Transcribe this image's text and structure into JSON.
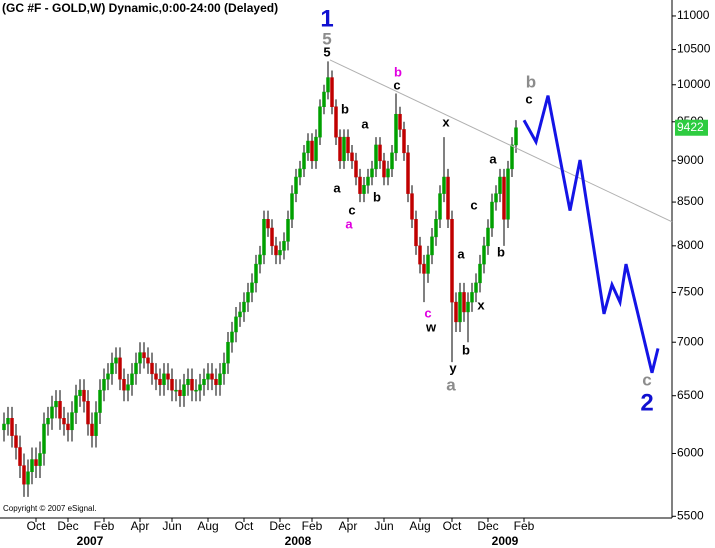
{
  "chart_data": {
    "type": "candlestick",
    "title": "(GC #F - GOLD,W) Dynamic,0:00-24:00 (Delayed)",
    "copyright": "Copyright © 2007 eSignal.",
    "log_scale": true,
    "up_color": "#00a000",
    "down_color": "#c00000",
    "last_price_color": "#2ecc40",
    "xlim": [
      -1,
      167
    ],
    "ylim": [
      5487,
      11246
    ],
    "yticks": [
      5500,
      6000,
      6500,
      7000,
      7500,
      8000,
      8500,
      9000,
      9500,
      10000,
      10500,
      11000
    ],
    "xticks": [
      {
        "value": 8,
        "label": "Oct"
      },
      {
        "value": 16,
        "label": "Dec"
      },
      {
        "value": 25,
        "label": "Feb"
      },
      {
        "value": 34,
        "label": "Apr"
      },
      {
        "value": 42,
        "label": "Jun"
      },
      {
        "value": 51,
        "label": "Aug"
      },
      {
        "value": 60,
        "label": "Oct"
      },
      {
        "value": 69,
        "label": "Dec"
      },
      {
        "value": 77,
        "label": "Feb"
      },
      {
        "value": 86,
        "label": "Apr"
      },
      {
        "value": 95,
        "label": "Jun"
      },
      {
        "value": 104,
        "label": "Aug"
      },
      {
        "value": 112,
        "label": "Oct"
      },
      {
        "value": 121,
        "label": "Dec"
      },
      {
        "value": 130,
        "label": "Feb"
      }
    ],
    "year_ticks": [
      {
        "value": 21.5,
        "label": "2007"
      },
      {
        "value": 73.5,
        "label": "2008"
      },
      {
        "value": 125.25,
        "label": "2009"
      }
    ],
    "open": [
      6200,
      6250,
      6300,
      6150,
      6050,
      5900,
      5750,
      5850,
      5950,
      5900,
      6000,
      6250,
      6300,
      6400,
      6450,
      6300,
      6250,
      6200,
      6350,
      6500,
      6550,
      6450,
      6250,
      6150,
      6350,
      6550,
      6650,
      6700,
      6800,
      6850,
      6650,
      6550,
      6600,
      6700,
      6800,
      6900,
      6850,
      6800,
      6700,
      6650,
      6600,
      6700,
      6650,
      6550,
      6550,
      6500,
      6600,
      6650,
      6550,
      6550,
      6600,
      6650,
      6700,
      6650,
      6600,
      6700,
      6800,
      7000,
      7100,
      7250,
      7300,
      7400,
      7500,
      7600,
      7800,
      7900,
      8300,
      8200,
      8000,
      7900,
      7950,
      8050,
      8300,
      8600,
      8800,
      8900,
      9100,
      9250,
      9000,
      9300,
      9700,
      9900,
      10100,
      9700,
      9300,
      9000,
      9300,
      9100,
      9000,
      8800,
      8600,
      8700,
      8800,
      8900,
      9200,
      9000,
      8800,
      8900,
      9100,
      9600,
      9400,
      9100,
      8600,
      8300,
      8000,
      7800,
      7700,
      7900,
      8100,
      8300,
      8600,
      8800,
      8300,
      7400,
      7200,
      7500,
      7300,
      7400,
      7500,
      7600,
      7800,
      8000,
      8200,
      8500,
      8600,
      8800,
      8300,
      8900,
      9200
    ],
    "high": [
      6350,
      6400,
      6400,
      6250,
      6150,
      6000,
      5950,
      6050,
      6050,
      6100,
      6350,
      6400,
      6500,
      6550,
      6550,
      6400,
      6350,
      6450,
      6600,
      6650,
      6650,
      6550,
      6350,
      6450,
      6650,
      6750,
      6800,
      6900,
      6950,
      6950,
      6750,
      6700,
      6800,
      6900,
      7000,
      7000,
      6950,
      6900,
      6800,
      6750,
      6800,
      6800,
      6750,
      6650,
      6650,
      6700,
      6750,
      6750,
      6650,
      6700,
      6750,
      6800,
      6800,
      6750,
      6800,
      6900,
      7100,
      7200,
      7350,
      7400,
      7500,
      7600,
      7700,
      7900,
      8000,
      8400,
      8400,
      8300,
      8100,
      8050,
      8150,
      8400,
      8700,
      8900,
      9000,
      9200,
      9350,
      9350,
      9400,
      9800,
      10000,
      10330,
      10200,
      9800,
      9400,
      9400,
      9400,
      9200,
      9100,
      8900,
      8800,
      8900,
      9000,
      9300,
      9300,
      9100,
      9000,
      9200,
      9880,
      9700,
      9500,
      9200,
      8700,
      8400,
      8100,
      7900,
      8000,
      8200,
      8400,
      8700,
      9300,
      8900,
      8400,
      7500,
      7600,
      7600,
      7500,
      7600,
      7700,
      7900,
      8100,
      8300,
      8600,
      8700,
      8900,
      8900,
      9000,
      9300,
      9522
    ],
    "low": [
      6100,
      6150,
      6050,
      5950,
      5800,
      5650,
      5650,
      5750,
      5800,
      5800,
      5900,
      6150,
      6200,
      6300,
      6200,
      6150,
      6100,
      6100,
      6250,
      6400,
      6350,
      6150,
      6050,
      6050,
      6250,
      6450,
      6550,
      6600,
      6700,
      6550,
      6450,
      6450,
      6500,
      6600,
      6700,
      6750,
      6700,
      6600,
      6550,
      6500,
      6500,
      6550,
      6450,
      6450,
      6400,
      6400,
      6500,
      6450,
      6450,
      6450,
      6500,
      6550,
      6550,
      6500,
      6500,
      6600,
      6700,
      6900,
      7000,
      7150,
      7200,
      7300,
      7400,
      7500,
      7700,
      7800,
      8100,
      7900,
      7800,
      7800,
      7850,
      7950,
      8200,
      8500,
      8700,
      8800,
      9000,
      8900,
      8900,
      9200,
      9600,
      9800,
      9600,
      9200,
      8900,
      8900,
      9000,
      8900,
      8700,
      8500,
      8500,
      8600,
      8700,
      8800,
      8900,
      8700,
      8700,
      8800,
      9000,
      9300,
      9000,
      8500,
      8200,
      7900,
      7700,
      7400,
      7600,
      7800,
      8000,
      8200,
      8500,
      8200,
      6810,
      7100,
      7100,
      7200,
      7000,
      7300,
      7400,
      7500,
      7700,
      7900,
      8100,
      8400,
      8500,
      8000,
      8200,
      8800,
      9100
    ],
    "close": [
      6250,
      6300,
      6150,
      6050,
      5900,
      5750,
      5850,
      5950,
      5900,
      6000,
      6250,
      6300,
      6400,
      6450,
      6300,
      6250,
      6200,
      6350,
      6500,
      6550,
      6450,
      6250,
      6150,
      6350,
      6550,
      6650,
      6700,
      6800,
      6850,
      6650,
      6550,
      6600,
      6700,
      6800,
      6900,
      6850,
      6800,
      6700,
      6650,
      6600,
      6700,
      6650,
      6550,
      6550,
      6500,
      6600,
      6650,
      6550,
      6550,
      6600,
      6650,
      6700,
      6650,
      6600,
      6700,
      6800,
      7000,
      7100,
      7250,
      7300,
      7400,
      7500,
      7600,
      7800,
      7900,
      8300,
      8200,
      8000,
      7900,
      7950,
      8050,
      8300,
      8600,
      8800,
      8900,
      9100,
      9250,
      9000,
      9300,
      9700,
      9900,
      10100,
      9700,
      9300,
      9000,
      9300,
      9100,
      9000,
      8800,
      8600,
      8700,
      8800,
      8900,
      9200,
      9000,
      8800,
      8900,
      9100,
      9600,
      9400,
      9100,
      8600,
      8300,
      8000,
      7800,
      7700,
      7900,
      8100,
      8300,
      8600,
      8800,
      8300,
      7400,
      7200,
      7500,
      7300,
      7400,
      7500,
      7600,
      7800,
      8000,
      8200,
      8500,
      8600,
      8800,
      8300,
      8900,
      9200,
      9422
    ],
    "trendline": {
      "color": "#b0b0b0",
      "x": [
        81.5,
        167
      ],
      "values": [
        10350,
        8271
      ]
    },
    "projection": {
      "color": "#1414e6",
      "x": [
        130,
        133,
        136,
        141.5,
        144,
        150,
        152,
        154,
        155.5,
        162,
        163.5
      ],
      "values": [
        9520,
        9240,
        9850,
        8400,
        9010,
        7280,
        7580,
        7400,
        7800,
        6710,
        6940
      ]
    },
    "annotations": [
      {
        "text": "1",
        "x": 80.75,
        "price": 10940,
        "color": "#1010d0",
        "style": "large"
      },
      {
        "text": "5",
        "x": 80.75,
        "price": 10640,
        "color": "#8c8c8c",
        "style": "medium"
      },
      {
        "text": "5",
        "x": 80.75,
        "price": 10450,
        "color": "#000000",
        "style": "small"
      },
      {
        "text": "b",
        "x": 98.5,
        "price": 10165,
        "color": "#e000e0",
        "style": "small"
      },
      {
        "text": "c",
        "x": 98.25,
        "price": 9985,
        "color": "#000000",
        "style": "small"
      },
      {
        "text": "b",
        "x": 131.75,
        "price": 10025,
        "color": "#8c8c8c",
        "style": "medium"
      },
      {
        "text": "c",
        "x": 131.25,
        "price": 9790,
        "color": "#000000",
        "style": "small"
      },
      {
        "text": "x",
        "x": 110.5,
        "price": 9485,
        "color": "#000000",
        "style": "small"
      },
      {
        "text": "b",
        "x": 85.25,
        "price": 9656,
        "color": "#000000",
        "style": "small"
      },
      {
        "text": "a",
        "x": 90.25,
        "price": 9458,
        "color": "#000000",
        "style": "small"
      },
      {
        "text": "a",
        "x": 83.25,
        "price": 8654,
        "color": "#000000",
        "style": "small"
      },
      {
        "text": "c",
        "x": 87,
        "price": 8395,
        "color": "#000000",
        "style": "small"
      },
      {
        "text": "a",
        "x": 86.25,
        "price": 8234,
        "color": "#e000e0",
        "style": "small"
      },
      {
        "text": "b",
        "x": 93.25,
        "price": 8547,
        "color": "#000000",
        "style": "small"
      },
      {
        "text": "a",
        "x": 122.25,
        "price": 9010,
        "color": "#000000",
        "style": "small"
      },
      {
        "text": "c",
        "x": 117.5,
        "price": 8453,
        "color": "#000000",
        "style": "small"
      },
      {
        "text": "a",
        "x": 114.25,
        "price": 7898,
        "color": "#000000",
        "style": "small"
      },
      {
        "text": "b",
        "x": 124.25,
        "price": 7920,
        "color": "#000000",
        "style": "small"
      },
      {
        "text": "x",
        "x": 119.25,
        "price": 7359,
        "color": "#000000",
        "style": "small"
      },
      {
        "text": "c",
        "x": 106,
        "price": 7278,
        "color": "#e000e0",
        "style": "small"
      },
      {
        "text": "w",
        "x": 106.75,
        "price": 7139,
        "color": "#000000",
        "style": "small"
      },
      {
        "text": "y",
        "x": 112.25,
        "price": 6745,
        "color": "#000000",
        "style": "small"
      },
      {
        "text": "b",
        "x": 115.5,
        "price": 6915,
        "color": "#000000",
        "style": "small"
      },
      {
        "text": "a",
        "x": 111.75,
        "price": 6587,
        "color": "#8c8c8c",
        "style": "medium"
      },
      {
        "text": "c",
        "x": 160.75,
        "price": 6634,
        "color": "#8c8c8c",
        "style": "medium"
      },
      {
        "text": "2",
        "x": 160.75,
        "price": 6425,
        "color": "#1010d0",
        "style": "large"
      }
    ]
  }
}
